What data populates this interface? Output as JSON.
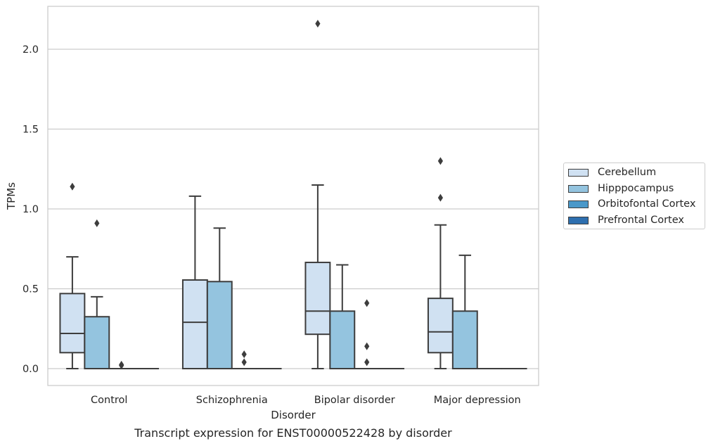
{
  "chart_data": {
    "type": "box",
    "title": "",
    "caption": "Transcript expression for ENST00000522428 by disorder",
    "xlabel": "Disorder",
    "ylabel": "TPMs",
    "ylim": [
      -0.1,
      2.27
    ],
    "yticks": [
      "0.0",
      "0.5",
      "1.0",
      "1.5",
      "2.0"
    ],
    "grid": "horizontal",
    "legend_position": "right",
    "categories": [
      "Control",
      "Schizophrenia",
      "Bipolar disorder",
      "Major depression"
    ],
    "series": [
      {
        "name": "Cerebellum",
        "color": "#d0e1f2",
        "boxes": [
          {
            "min": 0.0,
            "q1": 0.1,
            "median": 0.22,
            "q3": 0.47,
            "max": 0.7,
            "outliers": [
              1.14
            ]
          },
          {
            "min": 0.0,
            "q1": 0.0,
            "median": 0.29,
            "q3": 0.555,
            "max": 1.08,
            "outliers": []
          },
          {
            "min": 0.0,
            "q1": 0.215,
            "median": 0.36,
            "q3": 0.665,
            "max": 1.15,
            "outliers": [
              2.16
            ]
          },
          {
            "min": 0.0,
            "q1": 0.1,
            "median": 0.23,
            "q3": 0.44,
            "max": 0.9,
            "outliers": [
              1.07,
              1.3
            ]
          }
        ]
      },
      {
        "name": "Hipppocampus",
        "color": "#94c4df",
        "boxes": [
          {
            "min": 0.0,
            "q1": 0.0,
            "median": 0.0,
            "q3": 0.325,
            "max": 0.45,
            "outliers": [
              0.91
            ]
          },
          {
            "min": 0.0,
            "q1": 0.0,
            "median": 0.0,
            "q3": 0.545,
            "max": 0.88,
            "outliers": []
          },
          {
            "min": 0.0,
            "q1": 0.0,
            "median": 0.0,
            "q3": 0.36,
            "max": 0.65,
            "outliers": []
          },
          {
            "min": 0.0,
            "q1": 0.0,
            "median": 0.0,
            "q3": 0.36,
            "max": 0.71,
            "outliers": []
          }
        ]
      },
      {
        "name": "Orbitofontal Cortex",
        "color": "#4a98c9",
        "boxes": [
          {
            "min": 0.0,
            "q1": 0.0,
            "median": 0.0,
            "q3": 0.0,
            "max": 0.0,
            "outliers": [
              0.02,
              0.025
            ]
          },
          {
            "min": 0.0,
            "q1": 0.0,
            "median": 0.0,
            "q3": 0.0,
            "max": 0.0,
            "outliers": [
              0.04,
              0.09
            ]
          },
          {
            "min": 0.0,
            "q1": 0.0,
            "median": 0.0,
            "q3": 0.0,
            "max": 0.0,
            "outliers": [
              0.04,
              0.14,
              0.41
            ]
          },
          {
            "min": 0.0,
            "q1": 0.0,
            "median": 0.0,
            "q3": 0.0,
            "max": 0.0,
            "outliers": []
          }
        ]
      },
      {
        "name": "Prefrontal Cortex",
        "color": "#2e6faf",
        "boxes": [
          {
            "min": 0.0,
            "q1": 0.0,
            "median": 0.0,
            "q3": 0.0,
            "max": 0.0,
            "outliers": []
          },
          {
            "min": 0.0,
            "q1": 0.0,
            "median": 0.0,
            "q3": 0.0,
            "max": 0.0,
            "outliers": []
          },
          {
            "min": 0.0,
            "q1": 0.0,
            "median": 0.0,
            "q3": 0.0,
            "max": 0.0,
            "outliers": []
          },
          {
            "min": 0.0,
            "q1": 0.0,
            "median": 0.0,
            "q3": 0.0,
            "max": 0.0,
            "outliers": []
          }
        ]
      }
    ]
  }
}
